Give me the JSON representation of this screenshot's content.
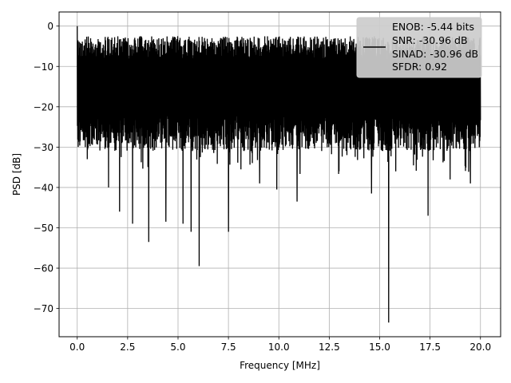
{
  "chart_data": {
    "type": "line",
    "title": "",
    "xlabel": "Frequency [MHz]",
    "ylabel": "PSD [dB]",
    "xlim": [
      -0.9,
      21.0
    ],
    "ylim": [
      -77,
      3.5
    ],
    "xticks": [
      0.0,
      2.5,
      5.0,
      7.5,
      10.0,
      12.5,
      15.0,
      17.5,
      20.0
    ],
    "xtick_labels": [
      "0.0",
      "2.5",
      "5.0",
      "7.5",
      "10.0",
      "12.5",
      "15.0",
      "17.5",
      "20.0"
    ],
    "yticks": [
      0,
      -10,
      -20,
      -30,
      -40,
      -50,
      -60,
      -70
    ],
    "ytick_labels": [
      "0",
      "−10",
      "−20",
      "−30",
      "−40",
      "−50",
      "−60",
      "−70"
    ],
    "grid": true,
    "legend_position": "top-right",
    "legend": [
      "ENOB: -5.44 bits",
      "SNR: -30.96 dB",
      "SINAD: -30.96 dB",
      "SFDR: 0.92"
    ],
    "series": [
      {
        "color": "#000000",
        "x_range": [
          0.0,
          20.0
        ],
        "value_range": [
          -73.5,
          0.0
        ],
        "notable_points": [
          {
            "x": 0.0,
            "y": 0.0
          },
          {
            "x": 0.5,
            "y": -33.0
          },
          {
            "x": 1.55,
            "y": -40.0
          },
          {
            "x": 2.1,
            "y": -46.0
          },
          {
            "x": 2.75,
            "y": -49.0
          },
          {
            "x": 3.55,
            "y": -53.5
          },
          {
            "x": 4.4,
            "y": -48.5
          },
          {
            "x": 5.25,
            "y": -49.0
          },
          {
            "x": 5.65,
            "y": -51.0
          },
          {
            "x": 6.05,
            "y": -59.5
          },
          {
            "x": 7.5,
            "y": -51.0
          },
          {
            "x": 9.05,
            "y": -39.0
          },
          {
            "x": 9.9,
            "y": -40.5
          },
          {
            "x": 10.9,
            "y": -43.5
          },
          {
            "x": 14.6,
            "y": -41.5
          },
          {
            "x": 15.45,
            "y": -73.5
          },
          {
            "x": 15.8,
            "y": -36.0
          },
          {
            "x": 17.4,
            "y": -47.0
          },
          {
            "x": 18.5,
            "y": -38.0
          },
          {
            "x": 19.5,
            "y": -39.0
          }
        ]
      }
    ]
  }
}
